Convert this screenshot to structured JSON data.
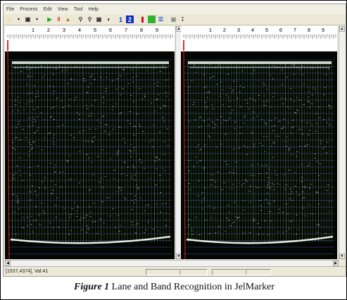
{
  "menu": [
    "File",
    "Process",
    "Edit",
    "View",
    "Tool",
    "Help"
  ],
  "toolbar_icons": [
    "open-folder-icon",
    "dropdown-icon",
    "save-icon",
    "dropdown-icon",
    "play-icon",
    "lane-detect-icon",
    "band-detect-icon",
    "zoom-in-icon",
    "zoom-out-icon",
    "fit-icon",
    "contrast-icon",
    "view-1-icon",
    "view-2-icon",
    "marker-icon",
    "green-block-icon",
    "list-icon",
    "export-icon",
    "download-icon"
  ],
  "toolbar_labels": {
    "view1": "1",
    "view2": "2"
  },
  "lane_numbers": [
    "1",
    "2",
    "3",
    "4",
    "5",
    "6",
    "7",
    "8",
    "9"
  ],
  "status": {
    "text": "[1537,4374], Val:41"
  },
  "caption": {
    "figure": "Figure 1",
    "text": " Lane and Band Recognition in JelMarker"
  },
  "colors": {
    "lane_line": "#7fd36a",
    "band_line": "#5b6bd6",
    "band_tick": "#ffffff",
    "left_edge": "#d22"
  }
}
